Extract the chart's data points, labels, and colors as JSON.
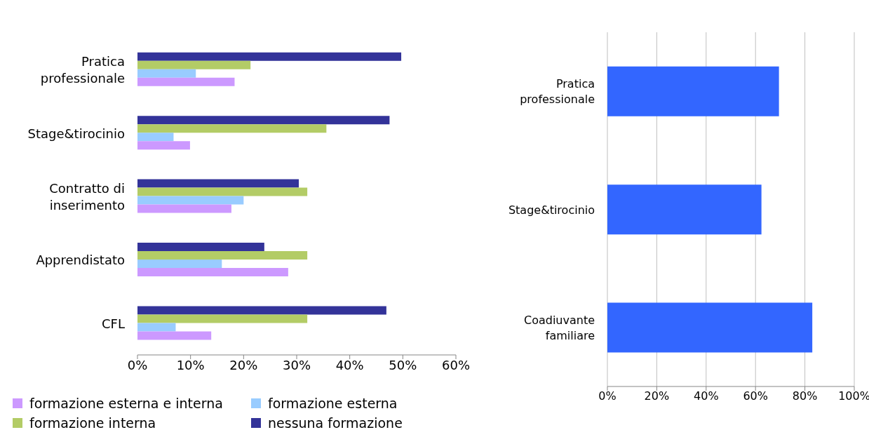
{
  "chart_data": [
    {
      "type": "bar",
      "orientation": "horizontal",
      "categories": [
        "Pratica professionale",
        "Stage&tirocinio",
        "Contratto di inserimento",
        "Apprendistato",
        "CFL"
      ],
      "series": [
        {
          "name": "formazione esterna e interna",
          "color": "#cc99ff",
          "values": [
            18.3,
            9.9,
            17.7,
            28.4,
            13.9
          ]
        },
        {
          "name": "formazione esterna",
          "color": "#99ccff",
          "values": [
            11,
            6.8,
            20,
            15.9,
            7.2
          ]
        },
        {
          "name": "formazione interna",
          "color": "#b3cc66",
          "values": [
            21.3,
            35.6,
            32,
            32,
            32
          ]
        },
        {
          "name": "nessuna formazione",
          "color": "#333399",
          "values": [
            49.7,
            47.5,
            30.4,
            23.9,
            46.9
          ]
        }
      ],
      "xlim": [
        0,
        60
      ],
      "xticks": [
        {
          "value": 0,
          "label": "0%"
        },
        {
          "value": 10,
          "label": "10%"
        },
        {
          "value": 20,
          "label": "20%"
        },
        {
          "value": 30,
          "label": "30%"
        },
        {
          "value": 40,
          "label": "40%"
        },
        {
          "value": 50,
          "label": "50%"
        },
        {
          "value": 60,
          "label": "60%"
        }
      ],
      "legend": "bottom"
    },
    {
      "type": "bar",
      "orientation": "horizontal",
      "categories": [
        "Pratica professionale",
        "Stage&tirocinio",
        "Coadiuvante familiare"
      ],
      "values": [
        69.5,
        62.4,
        83
      ],
      "color": "#3366ff",
      "xlim": [
        0,
        100
      ],
      "xticks": [
        {
          "value": 0,
          "label": "0%"
        },
        {
          "value": 20,
          "label": "20%"
        },
        {
          "value": 40,
          "label": "40%"
        },
        {
          "value": 60,
          "label": "60%"
        },
        {
          "value": 80,
          "label": "80%"
        },
        {
          "value": 100,
          "label": "100%"
        }
      ],
      "grid": "x"
    }
  ]
}
